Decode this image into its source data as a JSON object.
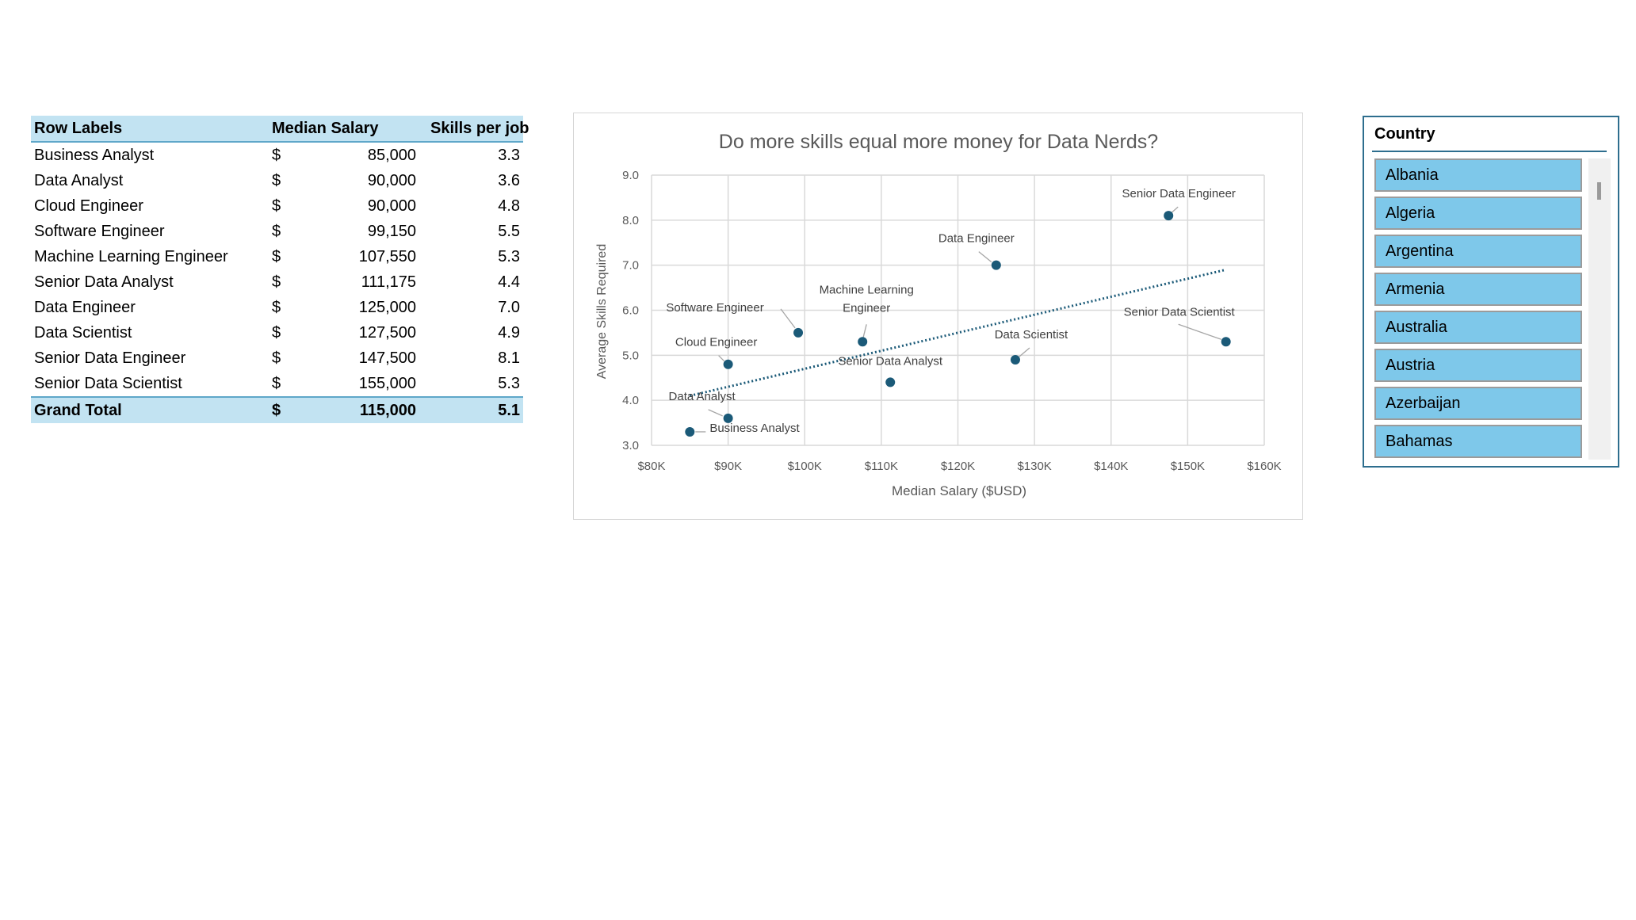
{
  "pivot": {
    "headers": [
      "Row Labels",
      "Median Salary",
      "Skills per job"
    ],
    "currency_symbol": "$",
    "rows": [
      {
        "label": "Business Analyst",
        "salary": "85,000",
        "skills": "3.3"
      },
      {
        "label": "Data Analyst",
        "salary": "90,000",
        "skills": "3.6"
      },
      {
        "label": "Cloud Engineer",
        "salary": "90,000",
        "skills": "4.8"
      },
      {
        "label": "Software Engineer",
        "salary": "99,150",
        "skills": "5.5"
      },
      {
        "label": "Machine Learning Engineer",
        "salary": "107,550",
        "skills": "5.3"
      },
      {
        "label": "Senior Data Analyst",
        "salary": "111,175",
        "skills": "4.4"
      },
      {
        "label": "Data Engineer",
        "salary": "125,000",
        "skills": "7.0"
      },
      {
        "label": "Data Scientist",
        "salary": "127,500",
        "skills": "4.9"
      },
      {
        "label": "Senior Data Engineer",
        "salary": "147,500",
        "skills": "8.1"
      },
      {
        "label": "Senior Data Scientist",
        "salary": "155,000",
        "skills": "5.3"
      }
    ],
    "total": {
      "label": "Grand Total",
      "salary": "115,000",
      "skills": "5.1"
    }
  },
  "chart_data": {
    "type": "scatter",
    "title": "Do more skills equal more money for Data Nerds?",
    "xlabel": "Median Salary ($USD)",
    "ylabel": "Average Skills Required",
    "xlim": [
      80000,
      160000
    ],
    "ylim": [
      3.0,
      9.0
    ],
    "x_ticks": [
      "$80K",
      "$90K",
      "$100K",
      "$110K",
      "$120K",
      "$130K",
      "$140K",
      "$150K",
      "$160K"
    ],
    "y_ticks": [
      "3.0",
      "4.0",
      "5.0",
      "6.0",
      "7.0",
      "8.0",
      "9.0"
    ],
    "grid": true,
    "marker_color": "#1b5a78",
    "trendline": {
      "style": "dotted",
      "color": "#1b5a78",
      "x_start": 85000,
      "x_end": 155000,
      "y_start": 4.1,
      "y_end": 6.9
    },
    "points": [
      {
        "label": "Business Analyst",
        "x": 85000,
        "y": 3.3
      },
      {
        "label": "Data Analyst",
        "x": 90000,
        "y": 3.6
      },
      {
        "label": "Cloud Engineer",
        "x": 90000,
        "y": 4.8
      },
      {
        "label": "Software Engineer",
        "x": 99150,
        "y": 5.5
      },
      {
        "label": "Machine Learning Engineer",
        "x": 107550,
        "y": 5.3
      },
      {
        "label": "Senior Data Analyst",
        "x": 111175,
        "y": 4.4
      },
      {
        "label": "Data Engineer",
        "x": 125000,
        "y": 7.0
      },
      {
        "label": "Data Scientist",
        "x": 127500,
        "y": 4.9
      },
      {
        "label": "Senior Data Engineer",
        "x": 147500,
        "y": 8.1
      },
      {
        "label": "Senior Data Scientist",
        "x": 155000,
        "y": 5.3
      }
    ]
  },
  "slicer": {
    "title": "Country",
    "items": [
      "Albania",
      "Algeria",
      "Argentina",
      "Armenia",
      "Australia",
      "Austria",
      "Azerbaijan",
      "Bahamas"
    ]
  }
}
